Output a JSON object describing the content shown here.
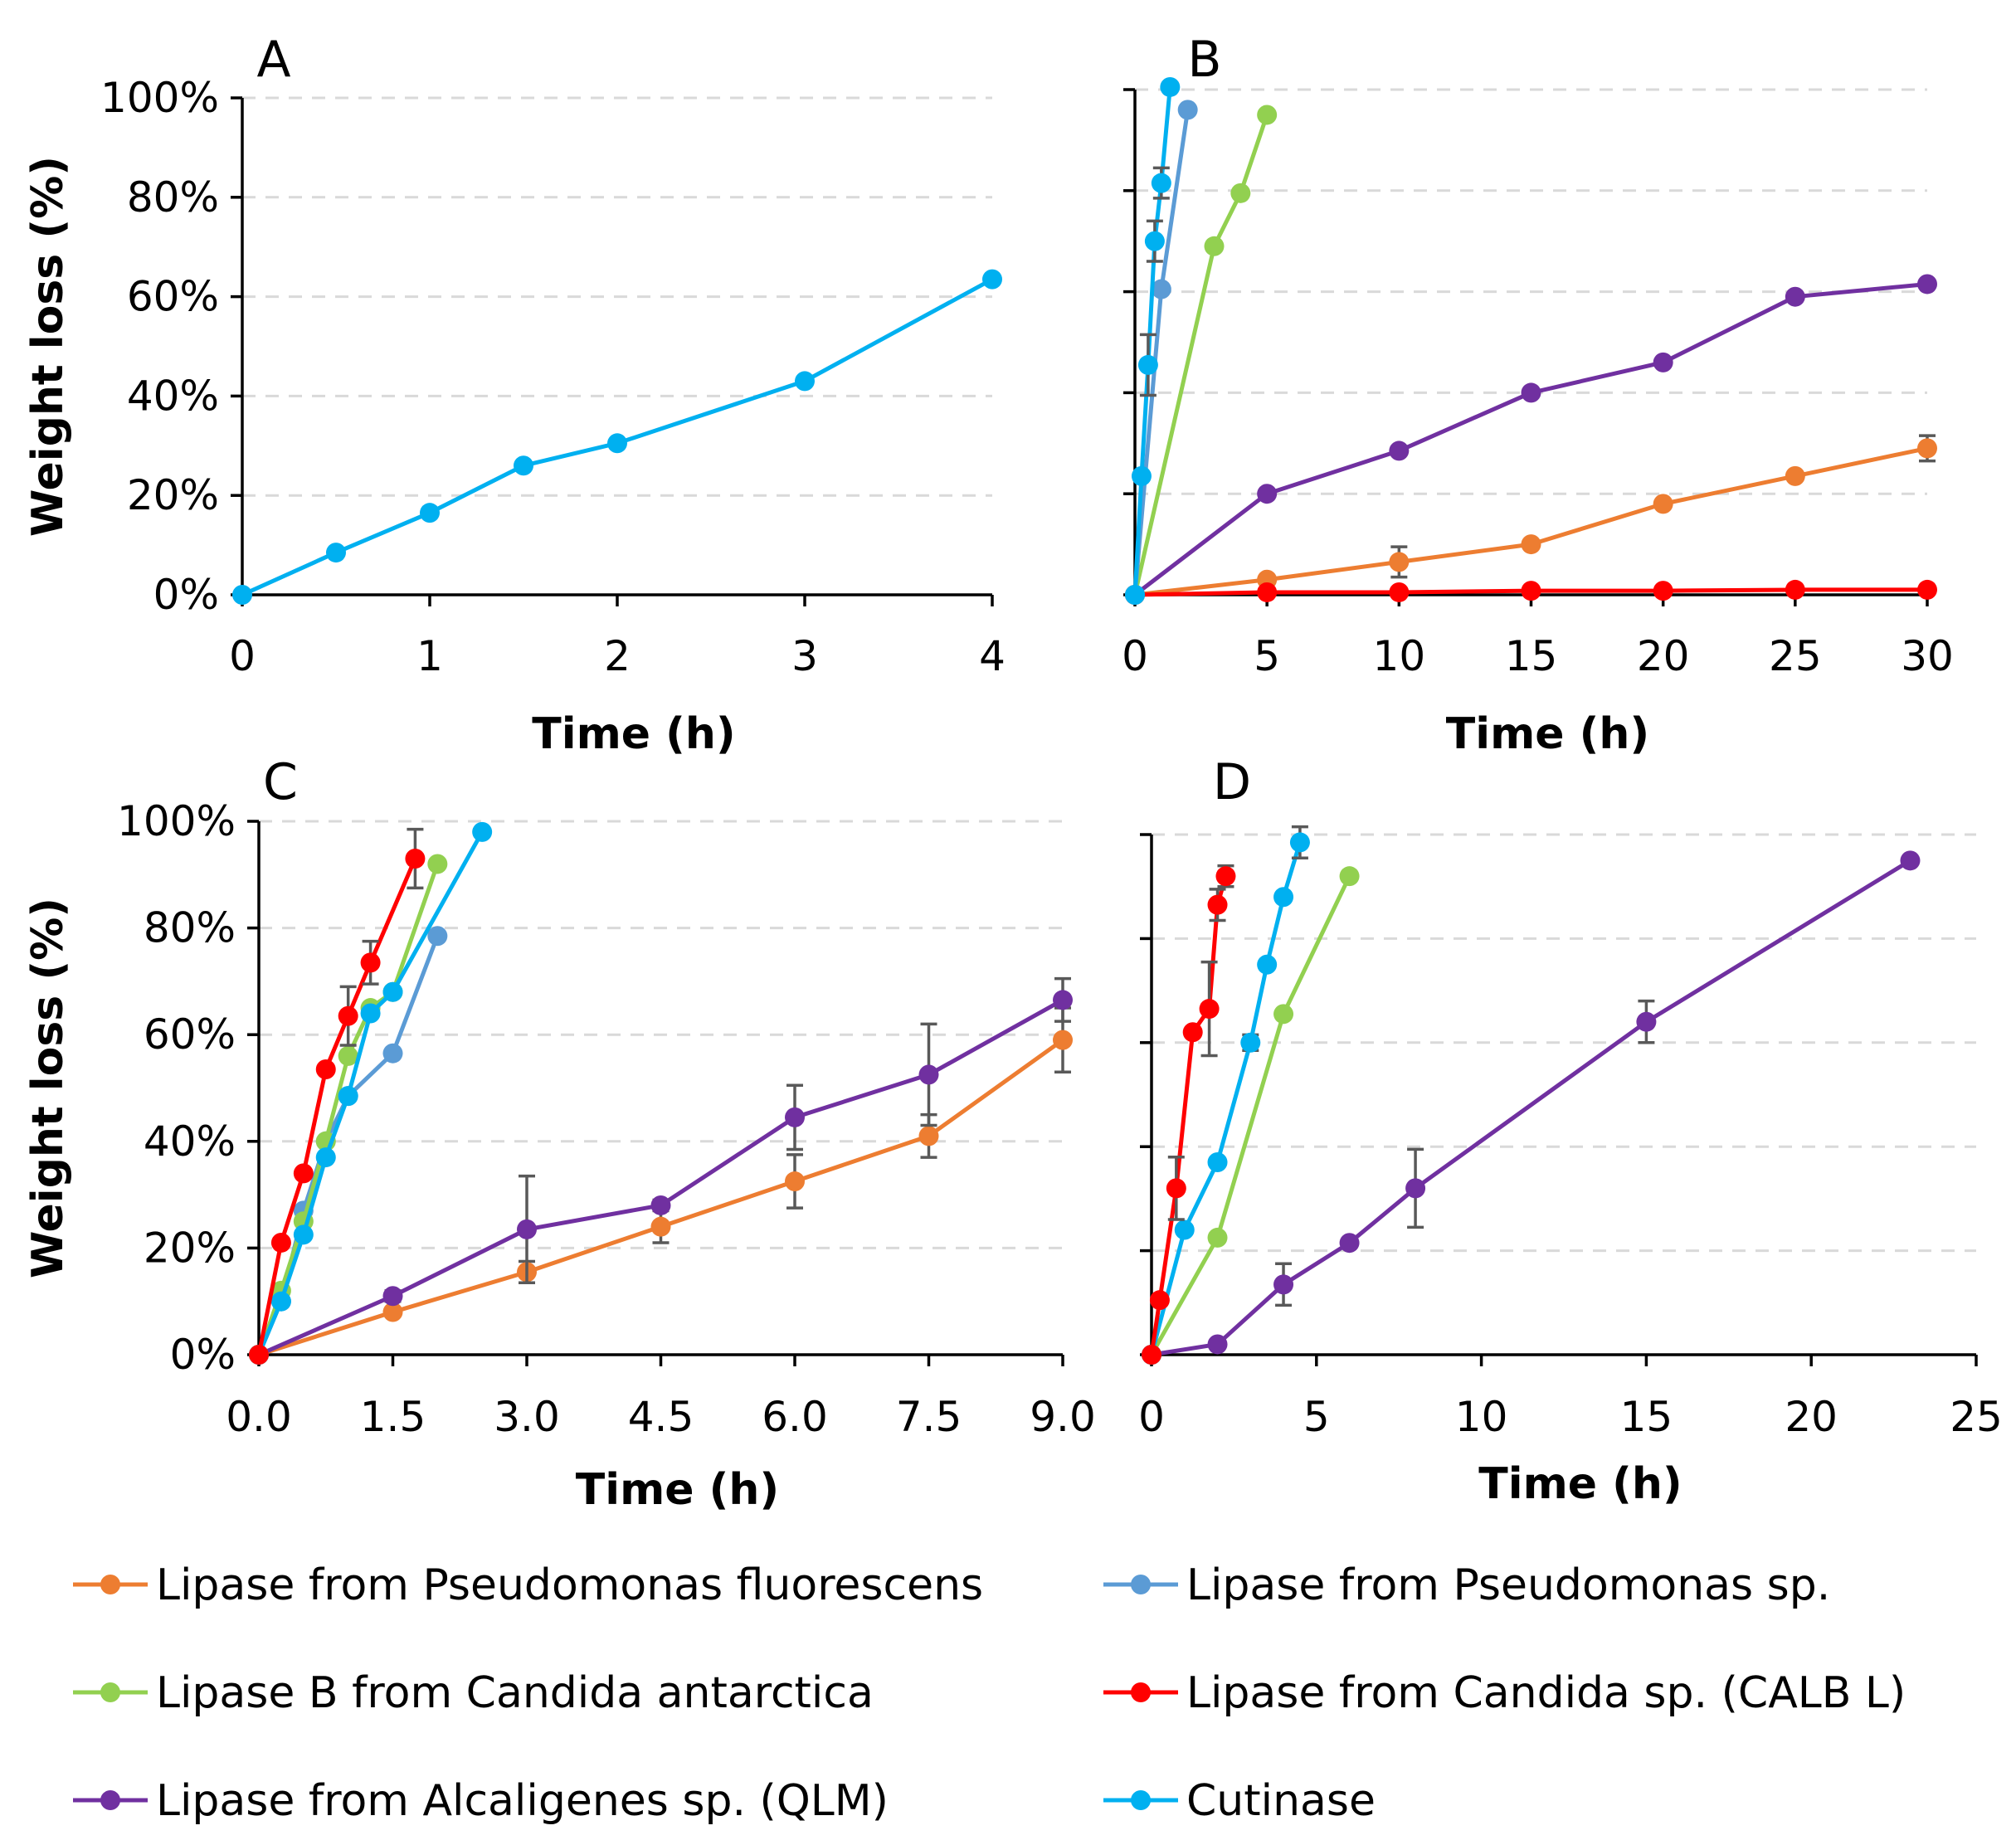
{
  "series_styles": {
    "pf": {
      "name": "Lipase from Pseudomonas fluorescens",
      "color": "#ED7D31"
    },
    "psp": {
      "name": "Lipase from Pseudomonas sp.",
      "color": "#5B9BD5"
    },
    "calb": {
      "name": "Lipase B from Candida antarctica",
      "color": "#92D050"
    },
    "cal": {
      "name": "Lipase from Candida sp. (CALB L)",
      "color": "#FF0000"
    },
    "qlm": {
      "name": "Lipase from Alcaligenes sp. (QLM)",
      "color": "#7030A0"
    },
    "cut": {
      "name": "Cutinase",
      "color": "#00B0F0"
    }
  },
  "legend": {
    "items": [
      {
        "key": "pf",
        "label": "Lipase from Pseudomonas fluorescens"
      },
      {
        "key": "psp",
        "label": "Lipase from Pseudomonas sp."
      },
      {
        "key": "calb",
        "label": "Lipase B from Candida antarctica"
      },
      {
        "key": "cal",
        "label": "Lipase from Candida sp. (CALB L)"
      },
      {
        "key": "qlm",
        "label": "Lipase from Alcaligenes sp. (QLM)"
      },
      {
        "key": "cut",
        "label": "Cutinase"
      }
    ]
  },
  "chart_data": [
    {
      "id": "A",
      "panel_label": "A",
      "type": "line",
      "xlabel": "Time (h)",
      "ylabel": "Weight loss (%)",
      "xlim": [
        0,
        4
      ],
      "ylim": [
        0,
        100
      ],
      "xticks": [
        0,
        1,
        2,
        3,
        4
      ],
      "xtick_labels": [
        "0",
        "1",
        "2",
        "3",
        "4"
      ],
      "yticks": [
        0,
        20,
        40,
        60,
        80,
        100
      ],
      "ytick_labels": [
        "0%",
        "20%",
        "40%",
        "60%",
        "80%",
        "100%"
      ],
      "show_ytick_labels": true,
      "grid": true,
      "series": [
        {
          "key": "cut",
          "name": "Cutinase",
          "x": [
            0,
            0.5,
            1,
            1.5,
            2,
            3,
            4
          ],
          "y": [
            0,
            8.5,
            16.5,
            26,
            30.5,
            43,
            63.5
          ],
          "err": [
            0,
            0,
            0,
            0,
            0,
            0,
            0
          ]
        }
      ]
    },
    {
      "id": "B",
      "panel_label": "B",
      "type": "line",
      "xlabel": "Time (h)",
      "ylabel": "",
      "xlim": [
        0,
        30
      ],
      "ylim": [
        0,
        100
      ],
      "xticks": [
        0,
        5,
        10,
        15,
        20,
        25,
        30
      ],
      "xtick_labels": [
        "0",
        "5",
        "10",
        "15",
        "20",
        "25",
        "30"
      ],
      "yticks": [
        0,
        20,
        40,
        60,
        80,
        100
      ],
      "ytick_labels": [
        "",
        "",
        "",
        "",
        "",
        ""
      ],
      "show_ytick_labels": false,
      "grid": true,
      "series": [
        {
          "key": "pf",
          "name": "Lipase from Pseudomonas fluorescens",
          "x": [
            0,
            5,
            10,
            15,
            20,
            25,
            30
          ],
          "y": [
            0,
            3,
            6.5,
            10,
            18,
            23.5,
            29
          ],
          "err": [
            0,
            0,
            3,
            0,
            0,
            0,
            2.5
          ]
        },
        {
          "key": "cal",
          "name": "Lipase from Candida sp. (CALB L)",
          "x": [
            0,
            5,
            10,
            15,
            20,
            25,
            30
          ],
          "y": [
            0,
            0.5,
            0.5,
            0.8,
            0.8,
            1,
            1
          ],
          "err": [
            0,
            0,
            0,
            0,
            0,
            0,
            0
          ]
        },
        {
          "key": "qlm",
          "name": "Lipase from Alcaligenes sp. (QLM)",
          "x": [
            0,
            5,
            10,
            15,
            20,
            25,
            30
          ],
          "y": [
            0,
            20,
            28.5,
            40,
            46,
            59,
            61.5
          ],
          "err": [
            0,
            0,
            0,
            0,
            0,
            0,
            0
          ]
        },
        {
          "key": "calb",
          "name": "Lipase B from Candida antarctica",
          "x": [
            0,
            3,
            4,
            5
          ],
          "y": [
            0,
            69,
            79.5,
            95
          ],
          "err": [
            0,
            0,
            0,
            0
          ]
        },
        {
          "key": "psp",
          "name": "Lipase from Pseudomonas sp.",
          "x": [
            0,
            1,
            2
          ],
          "y": [
            0,
            60.5,
            96
          ],
          "err": [
            0,
            0,
            0
          ]
        },
        {
          "key": "cut",
          "name": "Cutinase",
          "x": [
            0,
            0.25,
            0.5,
            0.75,
            1,
            1.33
          ],
          "y": [
            0,
            23.5,
            45.5,
            70,
            81.5,
            100.5
          ],
          "err": [
            0,
            0,
            6,
            4,
            3,
            0
          ]
        }
      ]
    },
    {
      "id": "C",
      "panel_label": "C",
      "type": "line",
      "xlabel": "Time (h)",
      "ylabel": "Weight loss (%)",
      "xlim": [
        0,
        9
      ],
      "ylim": [
        0,
        100
      ],
      "xticks": [
        0,
        1.5,
        3,
        4.5,
        6,
        7.5,
        9
      ],
      "xtick_labels": [
        "0.0",
        "1.5",
        "3.0",
        "4.5",
        "6.0",
        "7.5",
        "9.0"
      ],
      "yticks": [
        0,
        20,
        40,
        60,
        80,
        100
      ],
      "ytick_labels": [
        "0%",
        "20%",
        "40%",
        "60%",
        "80%",
        "100%"
      ],
      "show_ytick_labels": true,
      "grid": true,
      "series": [
        {
          "key": "pf",
          "name": "Lipase from Pseudomonas fluorescens",
          "x": [
            0,
            1.5,
            3,
            4.5,
            6,
            7.5,
            9
          ],
          "y": [
            0,
            8,
            15.5,
            24,
            32.5,
            41,
            59
          ],
          "err": [
            0,
            0,
            2,
            3,
            5,
            4,
            6
          ]
        },
        {
          "key": "qlm",
          "name": "Lipase from Alcaligenes sp. (QLM)",
          "x": [
            0,
            1.5,
            3,
            4.5,
            6,
            7.5,
            9
          ],
          "y": [
            0,
            11,
            23.5,
            28,
            44.5,
            52.5,
            66.5
          ],
          "err": [
            0,
            1,
            10,
            1,
            6,
            9.5,
            4
          ]
        },
        {
          "key": "psp",
          "name": "Lipase from Pseudomonas sp.",
          "x": [
            0,
            0.25,
            0.5,
            0.75,
            1,
            1.5,
            2
          ],
          "y": [
            0,
            10,
            27,
            40,
            48.5,
            56.5,
            78.5
          ],
          "err": [
            0,
            0,
            0,
            0,
            0,
            0,
            0
          ]
        },
        {
          "key": "calb",
          "name": "Lipase B from Candida antarctica",
          "x": [
            0,
            0.25,
            0.5,
            0.75,
            1,
            1.25,
            1.5,
            2
          ],
          "y": [
            0,
            12,
            25,
            40,
            56,
            65,
            68,
            92
          ],
          "err": [
            0,
            0,
            0,
            0,
            0,
            0,
            0,
            0
          ]
        },
        {
          "key": "cut",
          "name": "Cutinase",
          "x": [
            0,
            0.25,
            0.5,
            0.75,
            1,
            1.25,
            1.5,
            2.5
          ],
          "y": [
            0,
            10,
            22.5,
            37,
            48.5,
            64,
            68,
            98
          ],
          "err": [
            0,
            0,
            0,
            0,
            0,
            0,
            0,
            0
          ]
        },
        {
          "key": "cal",
          "name": "Lipase from Candida sp. (CALB L)",
          "x": [
            0,
            0.25,
            0.5,
            0.75,
            1,
            1.25,
            1.75
          ],
          "y": [
            0,
            21,
            34,
            53.5,
            63.5,
            73.5,
            93
          ],
          "err": [
            0,
            0,
            0,
            0,
            5.5,
            4,
            5.5
          ]
        }
      ]
    },
    {
      "id": "D",
      "panel_label": "D",
      "type": "line",
      "xlabel": "Time (h)",
      "ylabel": "",
      "xlim": [
        0,
        25
      ],
      "ylim": [
        0,
        100
      ],
      "xticks": [
        0,
        5,
        10,
        15,
        20,
        25
      ],
      "xtick_labels": [
        "0",
        "5",
        "10",
        "15",
        "20",
        "25"
      ],
      "yticks": [
        0,
        20,
        40,
        60,
        80,
        100
      ],
      "ytick_labels": [
        "",
        "",
        "",
        "",
        "",
        ""
      ],
      "show_ytick_labels": false,
      "grid": true,
      "series": [
        {
          "key": "qlm",
          "name": "Lipase from Alcaligenes sp. (QLM)",
          "x": [
            0,
            2,
            4,
            6,
            8,
            15,
            23
          ],
          "y": [
            0,
            2,
            13.5,
            21.5,
            32,
            64,
            95
          ],
          "err": [
            0,
            0,
            4,
            0,
            7.5,
            4,
            0
          ]
        },
        {
          "key": "calb",
          "name": "Lipase B from Candida antarctica",
          "x": [
            0,
            2,
            4,
            6
          ],
          "y": [
            0,
            22.5,
            65.5,
            92
          ],
          "err": [
            0,
            0,
            0,
            0
          ]
        },
        {
          "key": "cut",
          "name": "Cutinase",
          "x": [
            0,
            1,
            2,
            3,
            3.5,
            4,
            4.5
          ],
          "y": [
            0,
            24,
            37,
            60,
            75,
            88,
            98.5
          ],
          "err": [
            0,
            0,
            0,
            1.5,
            0,
            0,
            3
          ]
        },
        {
          "key": "cal",
          "name": "Lipase from Candida sp. (CALB L)",
          "x": [
            0,
            0.25,
            0.75,
            1.25,
            1.75,
            2,
            2.25
          ],
          "y": [
            0,
            10.5,
            32,
            62,
            66.5,
            86.5,
            92
          ],
          "err": [
            0,
            0,
            6,
            0,
            9,
            3,
            2
          ]
        }
      ]
    }
  ]
}
